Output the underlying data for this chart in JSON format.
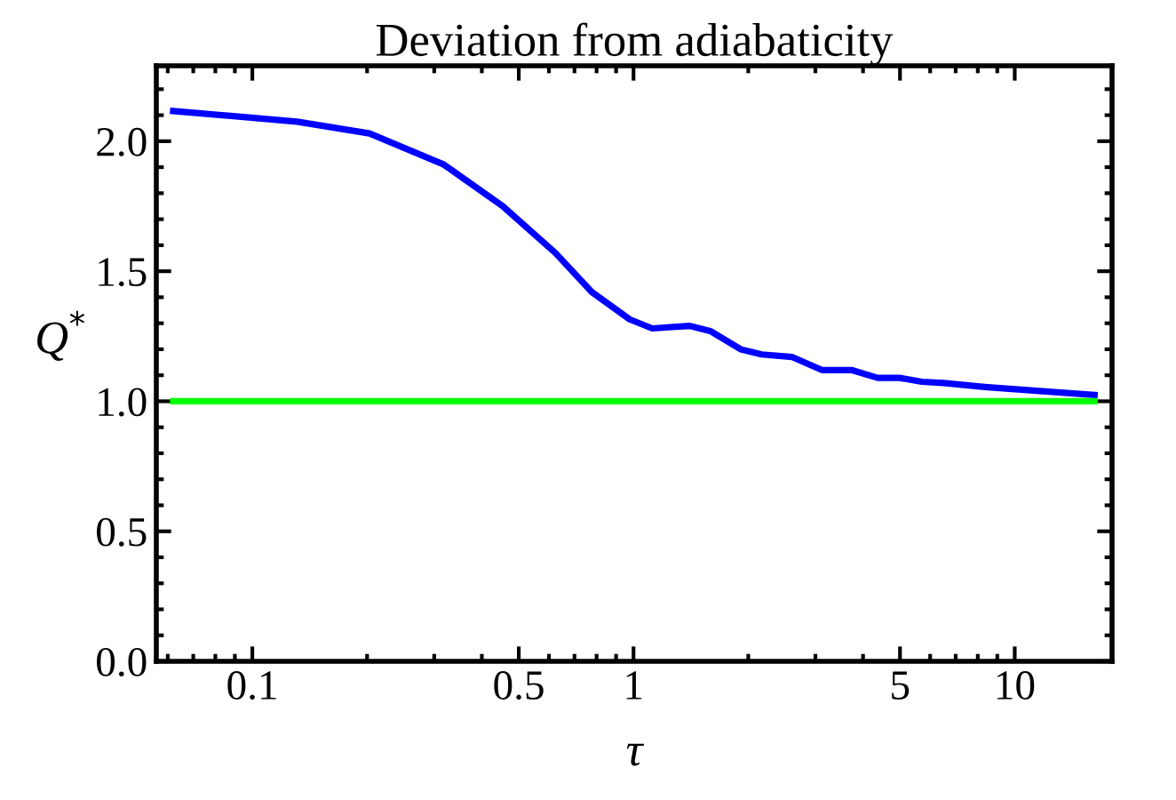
{
  "chart_data": {
    "type": "line",
    "title": "Deviation from adiabaticity",
    "xlabel": "τ",
    "ylabel": "Q$^{*}$",
    "log": "x",
    "xlim": [
      0.056,
      18
    ],
    "ylim": [
      0,
      2.29
    ],
    "xticks": [
      0.1,
      0.5,
      1,
      5,
      10
    ],
    "yticks": [
      {
        "value": 0,
        "label": "0.0"
      },
      {
        "value": 0.5,
        "label": "0.5"
      },
      {
        "value": 1,
        "label": "1.0"
      },
      {
        "value": 1.5,
        "label": "1.5"
      },
      {
        "value": 2,
        "label": "2.0"
      }
    ],
    "grid": false,
    "marker": "none",
    "line_style": "solid",
    "series": [
      {
        "color": "#0000ff",
        "x": [
          0.062,
          0.131,
          0.203,
          0.318,
          0.454,
          0.624,
          0.777,
          0.977,
          1.12,
          1.4,
          1.59,
          1.91,
          2.17,
          2.61,
          3.12,
          3.73,
          4.37,
          4.98,
          5.71,
          6.51,
          8.34,
          11.4,
          16.2
        ],
        "values": [
          2.116,
          2.075,
          2.03,
          1.91,
          1.75,
          1.57,
          1.42,
          1.315,
          1.28,
          1.29,
          1.27,
          1.2,
          1.18,
          1.17,
          1.12,
          1.12,
          1.09,
          1.09,
          1.075,
          1.07,
          1.055,
          1.04,
          1.024
        ]
      },
      {
        "color": "#00ff00",
        "x": [
          0.062,
          16.2
        ],
        "values": [
          1,
          1
        ]
      }
    ]
  }
}
